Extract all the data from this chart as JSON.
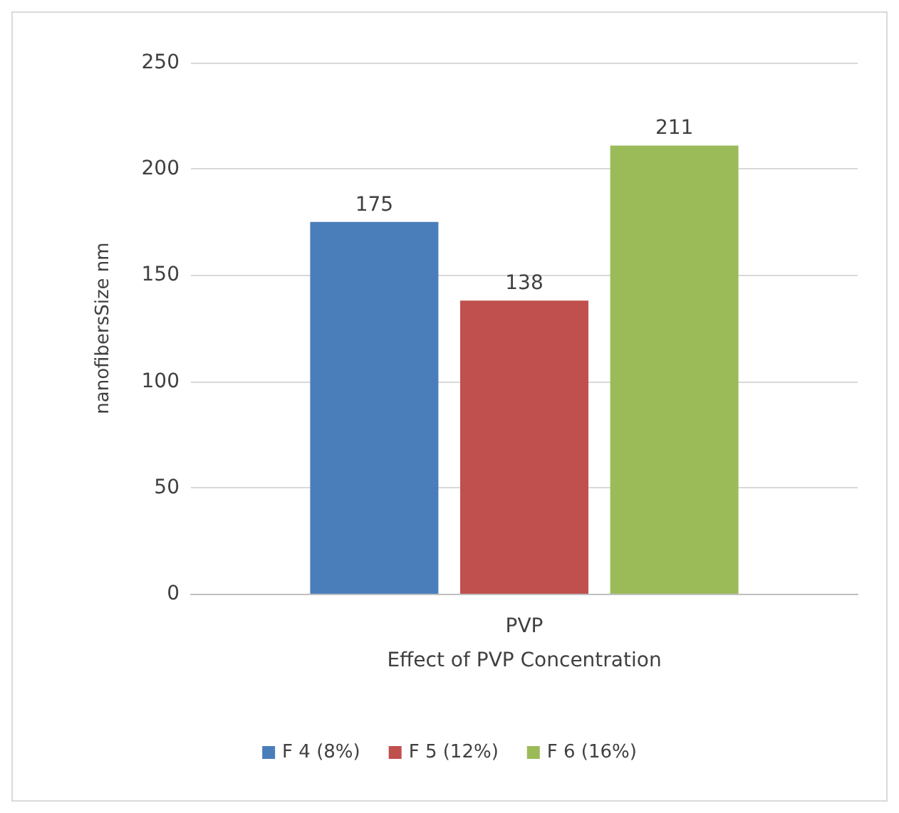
{
  "chart_data": {
    "type": "bar",
    "categories": [
      "PVP"
    ],
    "xlabel": "Effect of PVP Concentration",
    "ylabel": "nanofibersSize nm",
    "series": [
      {
        "name": "F 4 (8%)",
        "color": "#4a7ebb",
        "values": [
          175
        ]
      },
      {
        "name": "F 5 (12%)",
        "color": "#c0504d",
        "values": [
          138
        ]
      },
      {
        "name": "F 6 (16%)",
        "color": "#9bbb59",
        "values": [
          211
        ]
      }
    ],
    "ylim": [
      0,
      250
    ],
    "yticks": [
      0,
      50,
      100,
      150,
      200,
      250
    ],
    "grid": "y",
    "legend": "bottom",
    "data_labels": true
  }
}
